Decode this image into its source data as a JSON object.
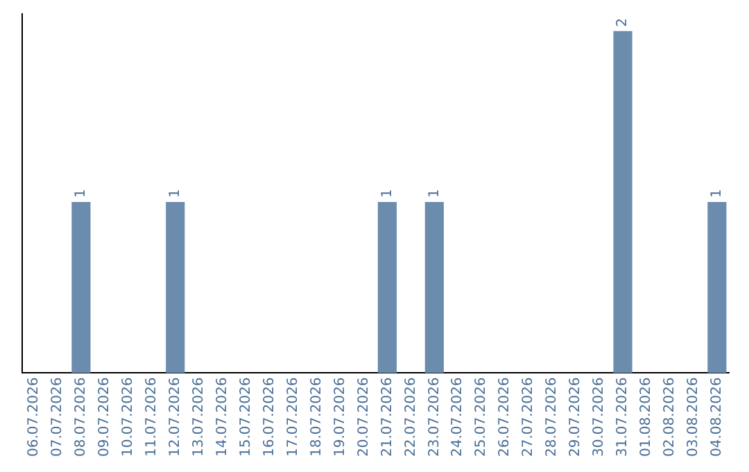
{
  "chart_data": {
    "type": "bar",
    "categories": [
      "06.07.2026",
      "07.07.2026",
      "08.07.2026",
      "09.07.2026",
      "10.07.2026",
      "11.07.2026",
      "12.07.2026",
      "13.07.2026",
      "14.07.2026",
      "15.07.2026",
      "16.07.2026",
      "17.07.2026",
      "18.07.2026",
      "19.07.2026",
      "20.07.2026",
      "21.07.2026",
      "22.07.2026",
      "23.07.2026",
      "24.07.2026",
      "25.07.2026",
      "26.07.2026",
      "27.07.2026",
      "28.07.2026",
      "29.07.2026",
      "30.07.2026",
      "31.07.2026",
      "01.08.2026",
      "02.08.2026",
      "03.08.2026",
      "04.08.2026"
    ],
    "values": [
      0,
      0,
      1,
      0,
      0,
      0,
      1,
      0,
      0,
      0,
      0,
      0,
      0,
      0,
      0,
      1,
      0,
      1,
      0,
      0,
      0,
      0,
      0,
      0,
      0,
      2,
      0,
      0,
      0,
      1
    ],
    "value_labels": [
      null,
      null,
      "1",
      null,
      null,
      null,
      "1",
      null,
      null,
      null,
      null,
      null,
      null,
      null,
      null,
      "1",
      null,
      "1",
      null,
      null,
      null,
      null,
      null,
      null,
      null,
      "2",
      null,
      null,
      null,
      "1"
    ],
    "color": "#6b8cac",
    "grid": false,
    "legend": false,
    "tick_labels": "x"
  }
}
